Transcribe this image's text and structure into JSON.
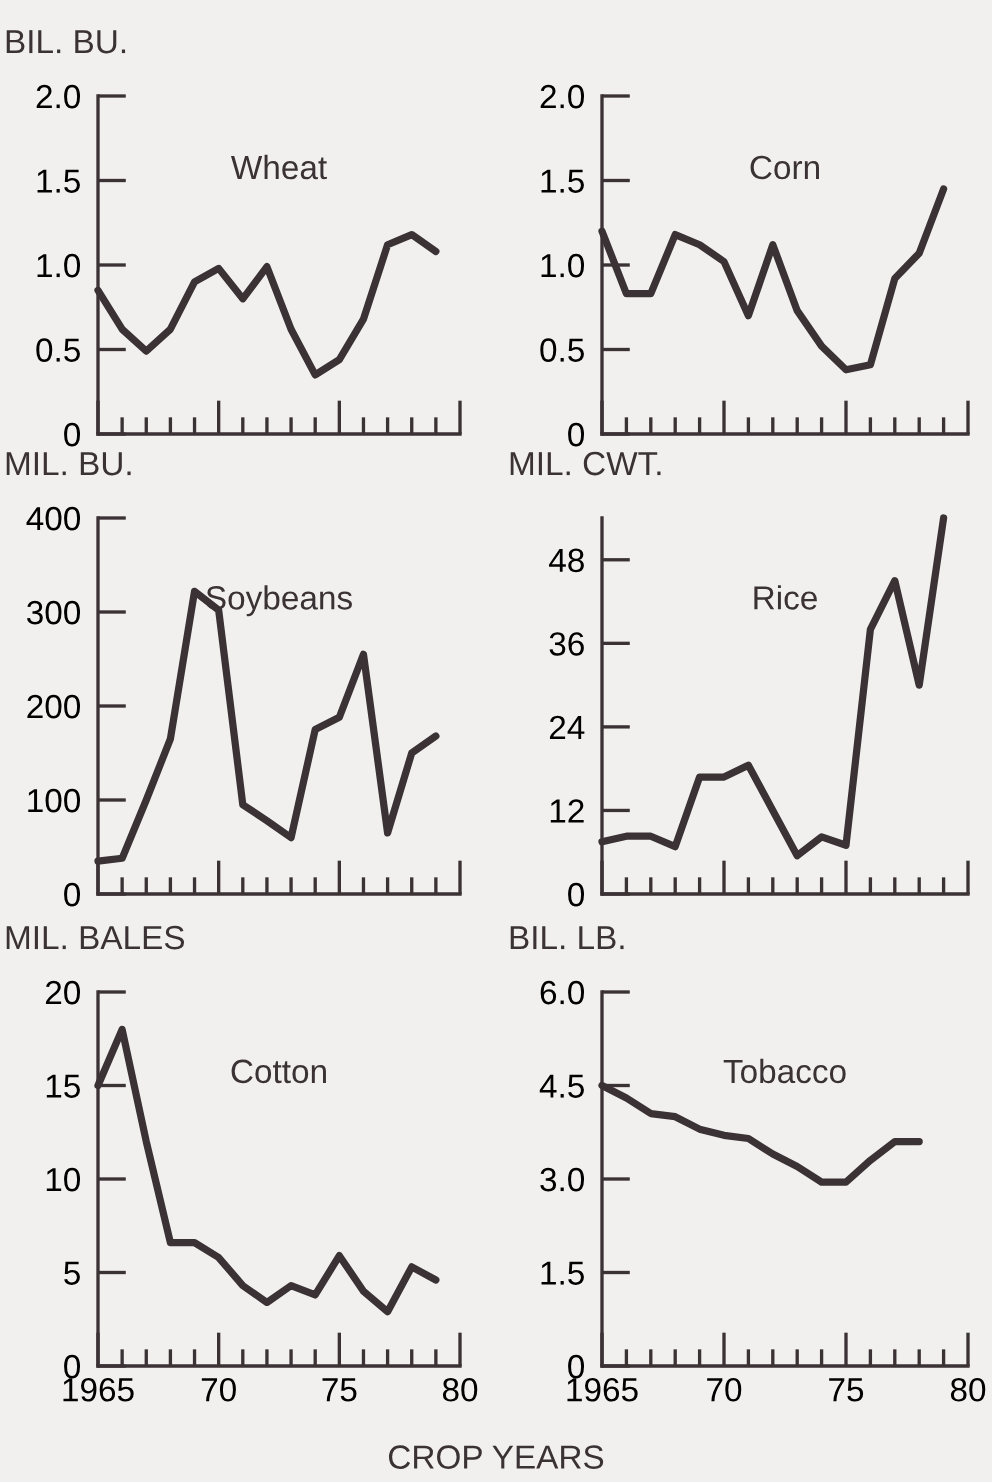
{
  "chart_data": [
    {
      "type": "line",
      "title": "Wheat",
      "ylabel": "BIL. BU.",
      "x": [
        1965,
        1966,
        1967,
        1968,
        1969,
        1970,
        1971,
        1972,
        1973,
        1974,
        1975,
        1976,
        1977,
        1978,
        1979
      ],
      "series": [
        {
          "color": "#3a3235",
          "values": [
            0.85,
            0.62,
            0.49,
            0.62,
            0.9,
            0.98,
            0.8,
            0.99,
            0.62,
            0.35,
            0.44,
            0.68,
            1.12,
            1.18,
            1.08
          ]
        }
      ],
      "xlim": [
        1965,
        1980
      ],
      "ylim": [
        0,
        2.0
      ],
      "yticks": [
        {
          "value": 0,
          "label": "0"
        },
        {
          "value": 0.5,
          "label": "0.5"
        },
        {
          "value": 1.0,
          "label": "1.0"
        },
        {
          "value": 1.5,
          "label": "1.5"
        },
        {
          "value": 2.0,
          "label": "2.0"
        }
      ],
      "xticks": [
        {
          "value": 1965,
          "label": null
        },
        {
          "value": 1966,
          "label": null
        },
        {
          "value": 1967,
          "label": null
        },
        {
          "value": 1968,
          "label": null
        },
        {
          "value": 1969,
          "label": null
        },
        {
          "value": 1970,
          "label": null
        },
        {
          "value": 1971,
          "label": null
        },
        {
          "value": 1972,
          "label": null
        },
        {
          "value": 1973,
          "label": null
        },
        {
          "value": 1974,
          "label": null
        },
        {
          "value": 1975,
          "label": null
        },
        {
          "value": 1976,
          "label": null
        },
        {
          "value": 1977,
          "label": null
        },
        {
          "value": 1978,
          "label": null
        },
        {
          "value": 1979,
          "label": null
        },
        {
          "value": 1980,
          "label": null
        }
      ],
      "tick_labels": "y",
      "grid": false,
      "legend": false
    },
    {
      "type": "line",
      "title": "Corn",
      "x": [
        1965,
        1966,
        1967,
        1968,
        1969,
        1970,
        1971,
        1972,
        1973,
        1974,
        1975,
        1976,
        1977,
        1978,
        1979
      ],
      "series": [
        {
          "color": "#3a3235",
          "values": [
            1.2,
            0.83,
            0.83,
            1.18,
            1.12,
            1.02,
            0.7,
            1.12,
            0.73,
            0.52,
            0.38,
            0.41,
            0.92,
            1.07,
            1.45
          ]
        }
      ],
      "xlim": [
        1965,
        1980
      ],
      "ylim": [
        0,
        2.0
      ],
      "yticks": [
        {
          "value": 0,
          "label": "0"
        },
        {
          "value": 0.5,
          "label": "0.5"
        },
        {
          "value": 1.0,
          "label": "1.0"
        },
        {
          "value": 1.5,
          "label": "1.5"
        },
        {
          "value": 2.0,
          "label": "2.0"
        }
      ],
      "xticks": [
        {
          "value": 1965,
          "label": null
        },
        {
          "value": 1966,
          "label": null
        },
        {
          "value": 1967,
          "label": null
        },
        {
          "value": 1968,
          "label": null
        },
        {
          "value": 1969,
          "label": null
        },
        {
          "value": 1970,
          "label": null
        },
        {
          "value": 1971,
          "label": null
        },
        {
          "value": 1972,
          "label": null
        },
        {
          "value": 1973,
          "label": null
        },
        {
          "value": 1974,
          "label": null
        },
        {
          "value": 1975,
          "label": null
        },
        {
          "value": 1976,
          "label": null
        },
        {
          "value": 1977,
          "label": null
        },
        {
          "value": 1978,
          "label": null
        },
        {
          "value": 1979,
          "label": null
        },
        {
          "value": 1980,
          "label": null
        }
      ],
      "tick_labels": "y",
      "grid": false,
      "legend": false
    },
    {
      "type": "line",
      "title": "Soybeans",
      "ylabel": "MIL. BU.",
      "x": [
        1965,
        1966,
        1967,
        1968,
        1969,
        1970,
        1971,
        1972,
        1973,
        1974,
        1975,
        1976,
        1977,
        1978,
        1979
      ],
      "series": [
        {
          "color": "#3a3235",
          "values": [
            35,
            38,
            100,
            165,
            322,
            302,
            95,
            78,
            60,
            175,
            188,
            255,
            65,
            150,
            168
          ]
        }
      ],
      "xlim": [
        1965,
        1980
      ],
      "ylim": [
        0,
        400
      ],
      "yticks": [
        0,
        100,
        200,
        300,
        400
      ],
      "xticks": [
        {
          "value": 1965,
          "label": null
        },
        {
          "value": 1966,
          "label": null
        },
        {
          "value": 1967,
          "label": null
        },
        {
          "value": 1968,
          "label": null
        },
        {
          "value": 1969,
          "label": null
        },
        {
          "value": 1970,
          "label": null
        },
        {
          "value": 1971,
          "label": null
        },
        {
          "value": 1972,
          "label": null
        },
        {
          "value": 1973,
          "label": null
        },
        {
          "value": 1974,
          "label": null
        },
        {
          "value": 1975,
          "label": null
        },
        {
          "value": 1976,
          "label": null
        },
        {
          "value": 1977,
          "label": null
        },
        {
          "value": 1978,
          "label": null
        },
        {
          "value": 1979,
          "label": null
        },
        {
          "value": 1980,
          "label": null
        }
      ],
      "tick_labels": "y",
      "grid": false,
      "legend": false
    },
    {
      "type": "line",
      "title": "Rice",
      "ylabel": "MIL. CWT.",
      "x": [
        1965,
        1966,
        1967,
        1968,
        1969,
        1970,
        1971,
        1972,
        1973,
        1974,
        1975,
        1976,
        1977,
        1978,
        1979
      ],
      "series": [
        {
          "color": "#3a3235",
          "values": [
            7.5,
            8.3,
            8.3,
            6.8,
            16.8,
            16.8,
            18.5,
            12,
            5.5,
            8.2,
            7,
            38,
            45,
            30,
            54
          ]
        }
      ],
      "xlim": [
        1965,
        1980
      ],
      "ylim": [
        0,
        54
      ],
      "yticks": [
        0,
        12,
        24,
        36,
        48
      ],
      "xticks": [
        {
          "value": 1965,
          "label": null
        },
        {
          "value": 1966,
          "label": null
        },
        {
          "value": 1967,
          "label": null
        },
        {
          "value": 1968,
          "label": null
        },
        {
          "value": 1969,
          "label": null
        },
        {
          "value": 1970,
          "label": null
        },
        {
          "value": 1971,
          "label": null
        },
        {
          "value": 1972,
          "label": null
        },
        {
          "value": 1973,
          "label": null
        },
        {
          "value": 1974,
          "label": null
        },
        {
          "value": 1975,
          "label": null
        },
        {
          "value": 1976,
          "label": null
        },
        {
          "value": 1977,
          "label": null
        },
        {
          "value": 1978,
          "label": null
        },
        {
          "value": 1979,
          "label": null
        },
        {
          "value": 1980,
          "label": null
        }
      ],
      "tick_labels": "y",
      "grid": false,
      "legend": false
    },
    {
      "type": "line",
      "title": "Cotton",
      "ylabel": "MIL. BALES",
      "xlabel": "CROP YEARS",
      "x": [
        1965,
        1966,
        1967,
        1968,
        1969,
        1970,
        1971,
        1972,
        1973,
        1974,
        1975,
        1976,
        1977,
        1978,
        1979
      ],
      "series": [
        {
          "color": "#3a3235",
          "values": [
            15,
            18,
            12,
            6.6,
            6.6,
            5.8,
            4.3,
            3.4,
            4.3,
            3.8,
            5.9,
            4.0,
            2.9,
            5.3,
            4.6
          ]
        }
      ],
      "xlim": [
        1965,
        1980
      ],
      "ylim": [
        0,
        20
      ],
      "yticks": [
        0,
        5,
        10,
        15,
        20
      ],
      "xticks": [
        {
          "value": 1965,
          "label": "1965"
        },
        {
          "value": 1966,
          "label": null
        },
        {
          "value": 1967,
          "label": null
        },
        {
          "value": 1968,
          "label": null
        },
        {
          "value": 1969,
          "label": null
        },
        {
          "value": 1970,
          "label": "70"
        },
        {
          "value": 1971,
          "label": null
        },
        {
          "value": 1972,
          "label": null
        },
        {
          "value": 1973,
          "label": null
        },
        {
          "value": 1974,
          "label": null
        },
        {
          "value": 1975,
          "label": "75"
        },
        {
          "value": 1976,
          "label": null
        },
        {
          "value": 1977,
          "label": null
        },
        {
          "value": 1978,
          "label": null
        },
        {
          "value": 1979,
          "label": null
        },
        {
          "value": 1980,
          "label": "80"
        }
      ],
      "grid": false,
      "legend": false
    },
    {
      "type": "line",
      "title": "Tobacco",
      "ylabel": "BIL. LB.",
      "x": [
        1965,
        1966,
        1967,
        1968,
        1969,
        1970,
        1971,
        1972,
        1973,
        1974,
        1975,
        1976,
        1977,
        1978
      ],
      "series": [
        {
          "color": "#3a3235",
          "values": [
            4.5,
            4.3,
            4.05,
            4.0,
            3.8,
            3.7,
            3.65,
            3.4,
            3.2,
            2.95,
            2.95,
            3.3,
            3.6,
            3.6
          ]
        }
      ],
      "xlim": [
        1965,
        1980
      ],
      "ylim": [
        0,
        6.0
      ],
      "yticks": [
        {
          "value": 0,
          "label": "0"
        },
        {
          "value": 1.5,
          "label": "1.5"
        },
        {
          "value": 3.0,
          "label": "3.0"
        },
        {
          "value": 4.5,
          "label": "4.5"
        },
        {
          "value": 6.0,
          "label": "6.0"
        }
      ],
      "xticks": [
        {
          "value": 1965,
          "label": "1965"
        },
        {
          "value": 1966,
          "label": null
        },
        {
          "value": 1967,
          "label": null
        },
        {
          "value": 1968,
          "label": null
        },
        {
          "value": 1969,
          "label": null
        },
        {
          "value": 1970,
          "label": "70"
        },
        {
          "value": 1971,
          "label": null
        },
        {
          "value": 1972,
          "label": null
        },
        {
          "value": 1973,
          "label": null
        },
        {
          "value": 1974,
          "label": null
        },
        {
          "value": 1975,
          "label": "75"
        },
        {
          "value": 1976,
          "label": null
        },
        {
          "value": 1977,
          "label": null
        },
        {
          "value": 1978,
          "label": null
        },
        {
          "value": 1979,
          "label": null
        },
        {
          "value": 1980,
          "label": "80"
        }
      ],
      "grid": false,
      "legend": false
    }
  ]
}
